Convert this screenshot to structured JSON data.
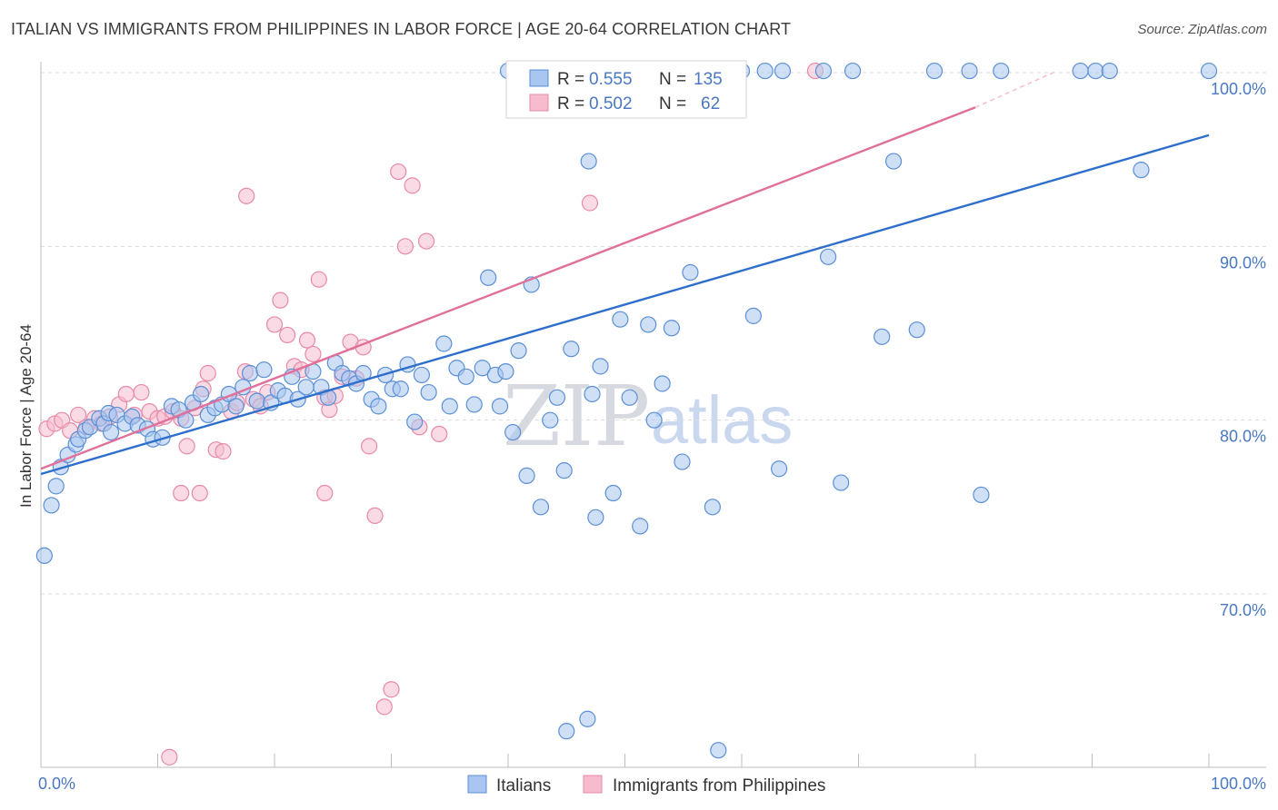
{
  "header": {
    "title": "ITALIAN VS IMMIGRANTS FROM PHILIPPINES IN LABOR FORCE | AGE 20-64 CORRELATION CHART",
    "source": "Source: ZipAtlas.com"
  },
  "watermark": {
    "zip": "ZIP",
    "atlas": "atlas"
  },
  "stats": {
    "italians": {
      "r_label": "R =",
      "r_value": "0.555",
      "n_label": "N =",
      "n_value": "135"
    },
    "philippines": {
      "r_label": "R =",
      "r_value": "0.502",
      "n_label": "N =",
      "n_value": "62"
    }
  },
  "legend": {
    "italians": "Italians",
    "philippines": "Immigrants from Philippines"
  },
  "colors": {
    "italians_fill": "#a8c6ef",
    "italians_stroke": "#5b8fd6",
    "italians_line": "#2e6fcc",
    "philippines_fill": "#f6bccd",
    "philippines_stroke": "#e88aa6",
    "philippines_line": "#e0709a",
    "tick_text": "#4a78c2",
    "grid": "#dcdcdc"
  },
  "chart_data": {
    "type": "scatter",
    "title": "ITALIAN VS IMMIGRANTS FROM PHILIPPINES IN LABOR FORCE | AGE 20-64 CORRELATION CHART",
    "xlabel": "",
    "ylabel": "In Labor Force | Age 20-64",
    "xlim": [
      0,
      100
    ],
    "ylim": [
      60.5,
      101.5
    ],
    "x_tick_labels": [
      "0.0%",
      "100.0%"
    ],
    "y_ticks": [
      70,
      80,
      90,
      100
    ],
    "y_tick_labels": [
      "70.0%",
      "80.0%",
      "90.0%",
      "100.0%"
    ],
    "grid": true,
    "legend_position": "bottom-center",
    "series": [
      {
        "name": "Italians",
        "trend": {
          "x": [
            0,
            100
          ],
          "y": [
            76.9,
            96.4
          ]
        },
        "points": [
          [
            0.3,
            72.2
          ],
          [
            0.9,
            75.1
          ],
          [
            1.3,
            76.2
          ],
          [
            1.7,
            77.3
          ],
          [
            2.3,
            78.0
          ],
          [
            3.0,
            78.6
          ],
          [
            3.2,
            78.9
          ],
          [
            3.8,
            79.4
          ],
          [
            4.2,
            79.6
          ],
          [
            5.0,
            80.1
          ],
          [
            5.4,
            79.8
          ],
          [
            5.8,
            80.4
          ],
          [
            6.0,
            79.3
          ],
          [
            6.5,
            80.3
          ],
          [
            7.2,
            79.8
          ],
          [
            7.8,
            80.2
          ],
          [
            8.3,
            79.7
          ],
          [
            9.1,
            79.5
          ],
          [
            9.6,
            78.9
          ],
          [
            10.4,
            79.0
          ],
          [
            11.2,
            80.8
          ],
          [
            11.8,
            80.6
          ],
          [
            12.4,
            80.0
          ],
          [
            13.0,
            81.0
          ],
          [
            13.7,
            81.5
          ],
          [
            14.3,
            80.3
          ],
          [
            14.9,
            80.7
          ],
          [
            15.5,
            80.9
          ],
          [
            16.1,
            81.5
          ],
          [
            16.7,
            80.8
          ],
          [
            17.3,
            81.9
          ],
          [
            17.9,
            82.7
          ],
          [
            18.5,
            81.1
          ],
          [
            19.1,
            82.9
          ],
          [
            19.7,
            81.0
          ],
          [
            20.3,
            81.7
          ],
          [
            20.9,
            81.4
          ],
          [
            21.5,
            82.5
          ],
          [
            22.0,
            81.2
          ],
          [
            22.7,
            81.9
          ],
          [
            23.3,
            82.8
          ],
          [
            24.0,
            81.9
          ],
          [
            24.6,
            81.3
          ],
          [
            25.2,
            83.3
          ],
          [
            25.8,
            82.7
          ],
          [
            26.4,
            82.4
          ],
          [
            27.0,
            82.1
          ],
          [
            27.6,
            82.7
          ],
          [
            28.3,
            81.2
          ],
          [
            28.9,
            80.8
          ],
          [
            29.5,
            82.6
          ],
          [
            30.1,
            81.8
          ],
          [
            30.8,
            81.8
          ],
          [
            31.4,
            83.2
          ],
          [
            32.0,
            79.9
          ],
          [
            32.6,
            82.6
          ],
          [
            33.2,
            81.6
          ],
          [
            34.5,
            84.4
          ],
          [
            35.0,
            80.8
          ],
          [
            35.6,
            83.0
          ],
          [
            36.4,
            82.5
          ],
          [
            37.1,
            80.9
          ],
          [
            37.8,
            83.0
          ],
          [
            38.3,
            88.2
          ],
          [
            38.9,
            82.6
          ],
          [
            39.3,
            80.8
          ],
          [
            39.8,
            82.8
          ],
          [
            40.4,
            79.3
          ],
          [
            40.9,
            84.0
          ],
          [
            41.6,
            76.8
          ],
          [
            42.0,
            87.8
          ],
          [
            42.8,
            75.0
          ],
          [
            43.6,
            80.0
          ],
          [
            44.2,
            81.3
          ],
          [
            44.8,
            77.1
          ],
          [
            45.4,
            84.1
          ],
          [
            46.9,
            94.9
          ],
          [
            47.2,
            81.5
          ],
          [
            47.5,
            74.4
          ],
          [
            47.9,
            83.1
          ],
          [
            49.0,
            75.8
          ],
          [
            49.6,
            85.8
          ],
          [
            50.4,
            81.3
          ],
          [
            51.3,
            73.9
          ],
          [
            52.0,
            85.5
          ],
          [
            52.5,
            80.0
          ],
          [
            53.2,
            82.1
          ],
          [
            54.0,
            85.3
          ],
          [
            54.9,
            77.6
          ],
          [
            55.6,
            88.5
          ],
          [
            57.5,
            75.0
          ],
          [
            58.0,
            61.0
          ],
          [
            61.0,
            86.0
          ],
          [
            63.2,
            77.2
          ],
          [
            67.4,
            89.4
          ],
          [
            68.5,
            76.4
          ],
          [
            72.0,
            84.8
          ],
          [
            73.0,
            94.9
          ],
          [
            75.0,
            85.2
          ],
          [
            80.5,
            75.7
          ],
          [
            94.2,
            94.4
          ],
          [
            45.0,
            62.1
          ],
          [
            46.8,
            62.8
          ],
          [
            40.0,
            100.1
          ],
          [
            44.1,
            100.1
          ],
          [
            46.2,
            100.1
          ],
          [
            48.5,
            100.1
          ],
          [
            51.0,
            100.1
          ],
          [
            53.0,
            100.1
          ],
          [
            55.0,
            100.1
          ],
          [
            58.0,
            100.1
          ],
          [
            60.0,
            100.1
          ],
          [
            62.0,
            100.1
          ],
          [
            63.5,
            100.1
          ],
          [
            67.0,
            100.1
          ],
          [
            69.5,
            100.1
          ],
          [
            76.5,
            100.1
          ],
          [
            79.5,
            100.1
          ],
          [
            82.2,
            100.1
          ],
          [
            89.0,
            100.1
          ],
          [
            90.3,
            100.1
          ],
          [
            91.5,
            100.1
          ],
          [
            100.0,
            100.1
          ]
        ]
      },
      {
        "name": "Immigrants from Philippines",
        "trend": {
          "x": [
            0,
            80
          ],
          "y": [
            77.2,
            98.0
          ]
        },
        "trend_dashed": {
          "x": [
            80,
            87
          ],
          "y": [
            98.0,
            100.1
          ]
        },
        "points": [
          [
            0.5,
            79.5
          ],
          [
            1.2,
            79.8
          ],
          [
            1.8,
            80.0
          ],
          [
            2.5,
            79.4
          ],
          [
            3.2,
            80.3
          ],
          [
            3.9,
            79.6
          ],
          [
            4.6,
            80.1
          ],
          [
            5.2,
            79.8
          ],
          [
            5.9,
            80.2
          ],
          [
            6.7,
            80.9
          ],
          [
            7.3,
            81.5
          ],
          [
            8.0,
            80.3
          ],
          [
            8.6,
            81.6
          ],
          [
            9.3,
            80.5
          ],
          [
            10.0,
            80.1
          ],
          [
            10.6,
            80.2
          ],
          [
            11.3,
            80.5
          ],
          [
            12.0,
            80.1
          ],
          [
            12.5,
            78.5
          ],
          [
            13.2,
            80.7
          ],
          [
            13.9,
            81.8
          ],
          [
            14.3,
            82.7
          ],
          [
            15.0,
            78.3
          ],
          [
            15.6,
            78.2
          ],
          [
            16.3,
            80.5
          ],
          [
            16.8,
            81.0
          ],
          [
            17.5,
            82.8
          ],
          [
            18.2,
            81.2
          ],
          [
            18.8,
            80.8
          ],
          [
            19.4,
            81.6
          ],
          [
            20.0,
            85.5
          ],
          [
            20.5,
            86.9
          ],
          [
            21.1,
            84.9
          ],
          [
            21.7,
            83.1
          ],
          [
            22.3,
            82.9
          ],
          [
            22.8,
            84.6
          ],
          [
            23.3,
            83.8
          ],
          [
            23.8,
            88.1
          ],
          [
            24.3,
            81.3
          ],
          [
            24.7,
            80.6
          ],
          [
            25.2,
            81.4
          ],
          [
            25.8,
            82.5
          ],
          [
            26.5,
            84.5
          ],
          [
            27.0,
            82.4
          ],
          [
            27.6,
            84.2
          ],
          [
            28.1,
            78.5
          ],
          [
            28.6,
            74.5
          ],
          [
            29.4,
            63.5
          ],
          [
            30.0,
            64.5
          ],
          [
            30.6,
            94.3
          ],
          [
            31.2,
            90.0
          ],
          [
            31.8,
            93.5
          ],
          [
            32.4,
            79.6
          ],
          [
            33.0,
            90.3
          ],
          [
            34.1,
            79.2
          ],
          [
            12.0,
            75.8
          ],
          [
            13.6,
            75.8
          ],
          [
            17.6,
            92.9
          ],
          [
            24.3,
            75.8
          ],
          [
            47.0,
            92.5
          ],
          [
            11.0,
            60.6
          ],
          [
            66.3,
            100.1
          ]
        ]
      }
    ]
  }
}
